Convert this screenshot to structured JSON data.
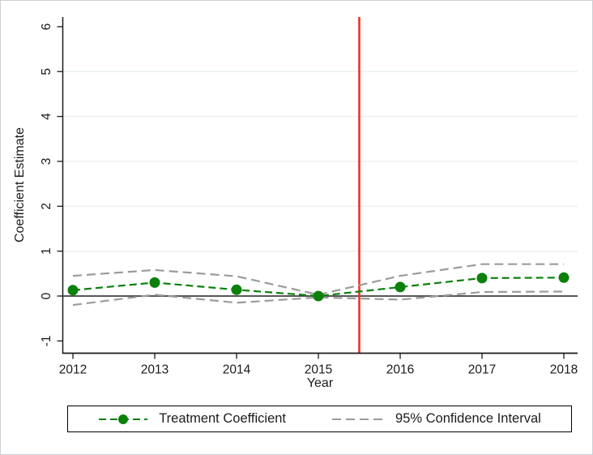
{
  "figure": {
    "background": "#ffffff",
    "border_color": "#ccd1d5"
  },
  "chart_data": {
    "type": "line",
    "title": "",
    "xlabel": "Year",
    "ylabel": "Coefficient Estimate",
    "x": [
      2012,
      2013,
      2014,
      2015,
      2016,
      2017,
      2018
    ],
    "series": [
      {
        "name": "Treatment Coefficient",
        "values": [
          0.13,
          0.3,
          0.14,
          0.0,
          0.2,
          0.4,
          0.41
        ],
        "color": "#0b800b",
        "line_style": "dashed",
        "marker": "circle"
      },
      {
        "name": "95% Confidence Interval (upper)",
        "values": [
          0.45,
          0.58,
          0.44,
          0.03,
          0.45,
          0.71,
          0.71
        ],
        "color": "#9b9b9b",
        "line_style": "dashed",
        "marker": "none"
      },
      {
        "name": "95% Confidence Interval (lower)",
        "values": [
          -0.2,
          0.03,
          -0.15,
          -0.03,
          -0.08,
          0.09,
          0.1
        ],
        "color": "#9b9b9b",
        "line_style": "dashed",
        "marker": "none"
      }
    ],
    "x_ticks": [
      2012,
      2013,
      2014,
      2015,
      2016,
      2017,
      2018
    ],
    "y_ticks": [
      -1,
      0,
      1,
      2,
      3,
      4,
      5,
      6
    ],
    "grid_values": [
      1,
      2,
      3,
      4,
      5
    ],
    "grid_color": "#e9eff3",
    "xlim": [
      2011.87,
      2018.17
    ],
    "ylim": [
      -1.27,
      6.22
    ],
    "legend_position": "bottom",
    "reference_lines": {
      "vertical_x": 2015.5,
      "vertical_color": "#ef3125",
      "horizontal_y": 0,
      "horizontal_color": "#3f3f3f"
    }
  },
  "legend": {
    "items": [
      {
        "label": "Treatment Coefficient",
        "color": "#0b800b",
        "sample": "dashed-line-with-dot"
      },
      {
        "label": "95% Confidence Interval",
        "color": "#9b9b9b",
        "sample": "dashed-line"
      }
    ]
  }
}
